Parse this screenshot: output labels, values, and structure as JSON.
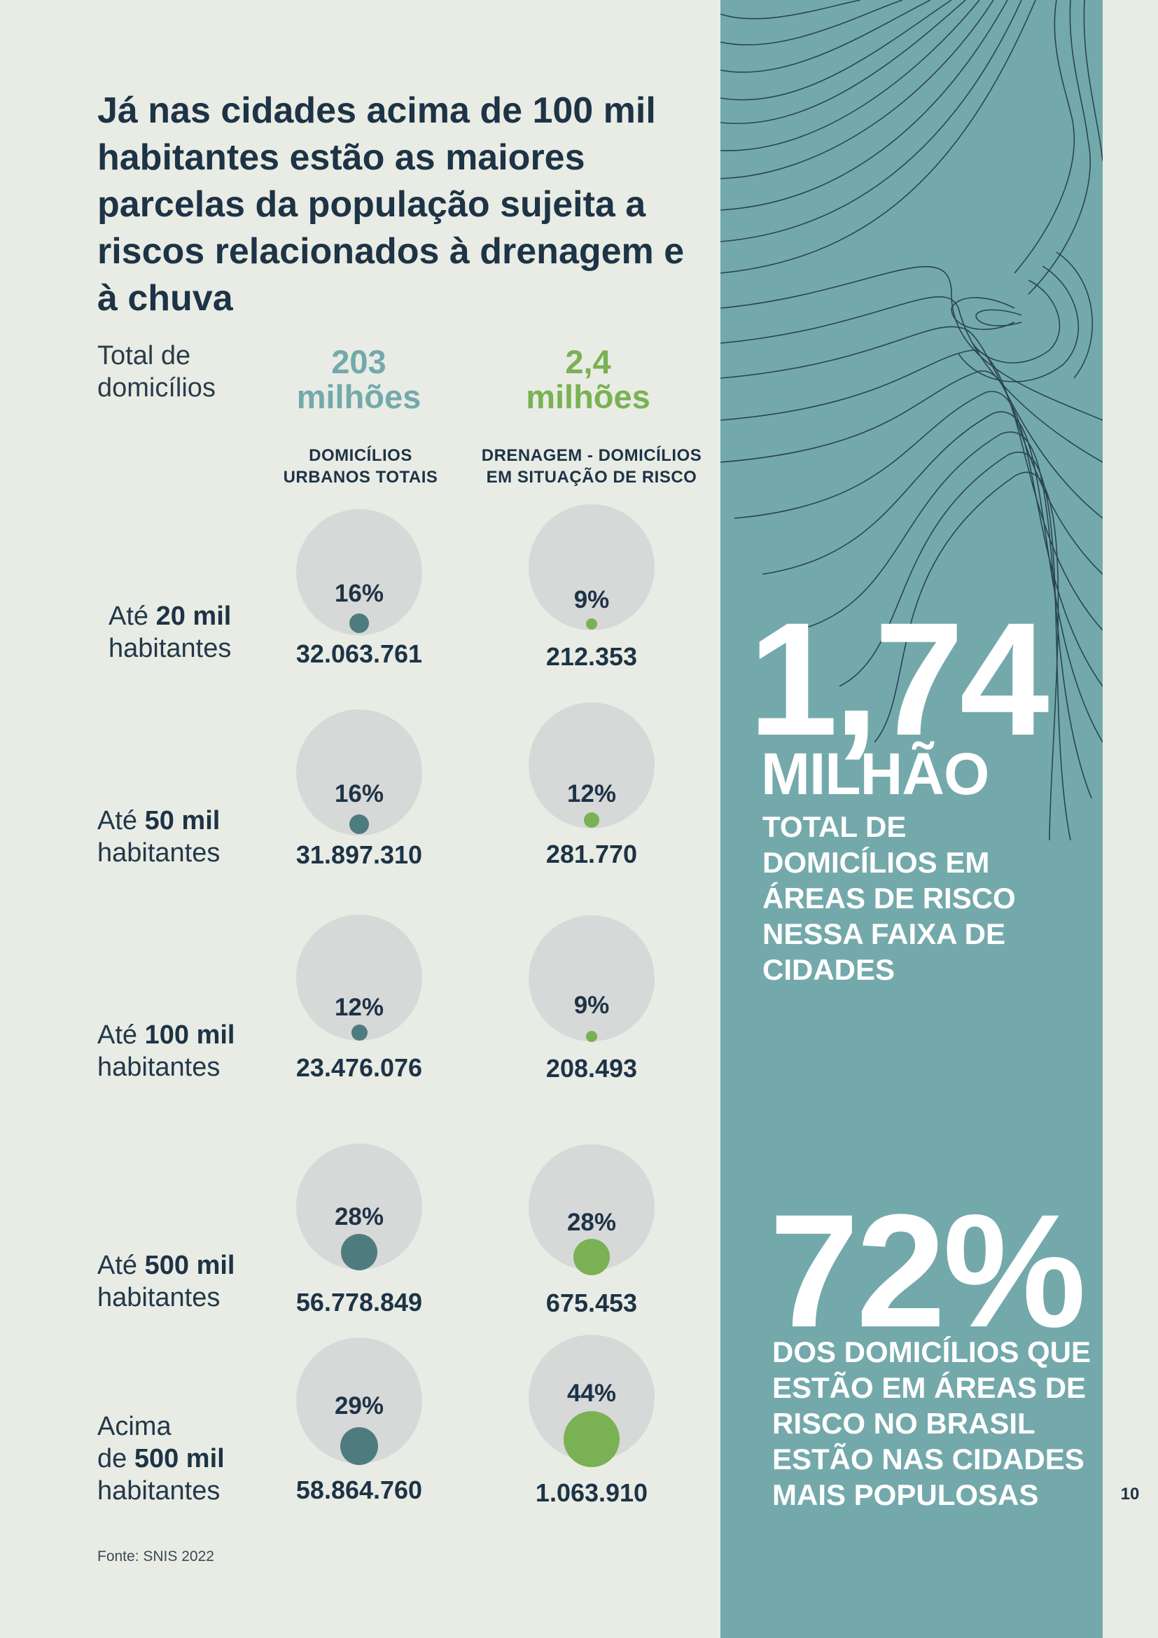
{
  "headline": "Já nas cidades acima de 100 mil habitantes estão as maiores parcelas da população sujeita a riscos relacionados à drenagem e à chuva",
  "total_label": "Total de domicílios",
  "columns": [
    {
      "big_number": "203",
      "big_unit": "milhões",
      "heading": "DOMICÍLIOS URBANOS TOTAIS"
    },
    {
      "big_number": "2,4",
      "big_unit": "milhões",
      "heading": "DRENAGEM - DOMICÍLIOS EM SITUAÇÃO DE RISCO"
    }
  ],
  "rows": [
    {
      "label_pre": "Até",
      "label_bold": "20 mil",
      "label_post": "habitantes",
      "urban_pct": "16%",
      "urban_count": "32.063.761",
      "risk_pct": "9%",
      "risk_count": "212.353"
    },
    {
      "label_pre": "Até",
      "label_bold": "50 mil",
      "label_post": "habitantes",
      "urban_pct": "16%",
      "urban_count": "31.897.310",
      "risk_pct": "12%",
      "risk_count": "281.770"
    },
    {
      "label_pre": "Até",
      "label_bold": "100 mil",
      "label_post": "habitantes",
      "urban_pct": "12%",
      "urban_count": "23.476.076",
      "risk_pct": "9%",
      "risk_count": "208.493"
    },
    {
      "label_pre": "Até",
      "label_bold": "500 mil",
      "label_post": "habitantes",
      "urban_pct": "28%",
      "urban_count": "56.778.849",
      "risk_pct": "28%",
      "risk_count": "675.453"
    },
    {
      "label_pre": "Acima",
      "label_pre2": "de",
      "label_bold": "500 mil",
      "label_post": "habitantes",
      "urban_pct": "29%",
      "urban_count": "58.864.760",
      "risk_pct": "44%",
      "risk_count": "1.063.910"
    }
  ],
  "source": "Fonte: SNIS 2022",
  "side_panel": {
    "stat1_value": "1,74",
    "stat1_unit": "MILHÃO",
    "stat1_desc": "TOTAL DE DOMICÍLIOS EM ÁREAS DE RISCO NESSA FAIXA DE CIDADES",
    "stat2_value": "72%",
    "stat2_desc": "DOS DOMICÍLIOS QUE ESTÃO EM ÁREAS DE RISCO NO BRASIL ESTÃO NAS CIDADES MAIS POPULOSAS"
  },
  "page_number": "10",
  "colors": {
    "background": "#e9ece4",
    "navy": "#1d3346",
    "teal": "#74a9ab",
    "teal_dot": "#4e7c7e",
    "green": "#7ab154",
    "bubble": "#d7d8d8"
  }
}
